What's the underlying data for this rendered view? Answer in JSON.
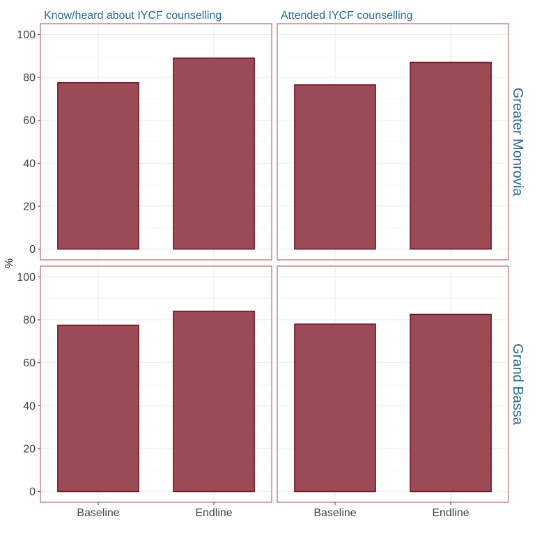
{
  "chart_data": {
    "type": "bar",
    "ylabel": "%",
    "xlabel": "",
    "ylim": [
      -5,
      105
    ],
    "yticks": [
      0,
      20,
      40,
      60,
      80,
      100
    ],
    "categories": [
      "Baseline",
      "Endline"
    ],
    "col_facets": [
      "Know/heard about IYCF counselling",
      "Attended IYCF counselling"
    ],
    "row_facets": [
      "Greater Monrovia",
      "Grand Bassa"
    ],
    "bar_fill": "#9b4b55",
    "bar_stroke": "#6e0f1f",
    "panels": [
      {
        "row": 0,
        "col": 0,
        "values": [
          77.5,
          89.0
        ]
      },
      {
        "row": 0,
        "col": 1,
        "values": [
          76.5,
          87.0
        ]
      },
      {
        "row": 1,
        "col": 0,
        "values": [
          77.5,
          84.0
        ]
      },
      {
        "row": 1,
        "col": 1,
        "values": [
          78.0,
          82.5
        ]
      }
    ],
    "grid": true,
    "legend": "none"
  }
}
